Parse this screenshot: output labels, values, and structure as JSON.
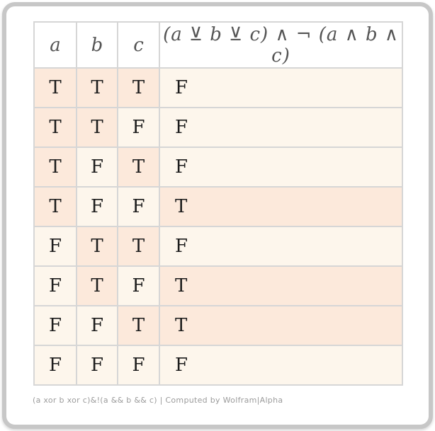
{
  "table": {
    "headers": [
      "a",
      "b",
      "c",
      "(a ⊻ b ⊻ c) ∧ ¬ (a ∧ b ∧ c)"
    ],
    "true_label": "T",
    "false_label": "F",
    "rows": [
      [
        "T",
        "T",
        "T",
        "F"
      ],
      [
        "T",
        "T",
        "F",
        "F"
      ],
      [
        "T",
        "F",
        "T",
        "F"
      ],
      [
        "T",
        "F",
        "F",
        "T"
      ],
      [
        "F",
        "T",
        "T",
        "F"
      ],
      [
        "F",
        "T",
        "F",
        "T"
      ],
      [
        "F",
        "F",
        "T",
        "T"
      ],
      [
        "F",
        "F",
        "F",
        "F"
      ]
    ]
  },
  "footer": {
    "caption": "(a xor b xor c)&!(a && b && c) | Computed by Wolfram|Alpha"
  },
  "colors": {
    "true_cell_bg": "#fce9db",
    "false_cell_bg": "#fdf6ec",
    "grid_border": "#d6d6d6",
    "card_border": "#c7c7c7",
    "header_text": "#555555",
    "value_text": "#1c1c1c",
    "caption_text": "#9b9b9b"
  }
}
